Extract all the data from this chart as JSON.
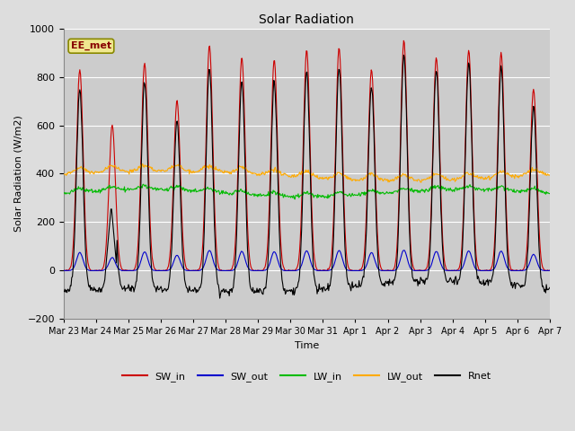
{
  "title": "Solar Radiation",
  "ylabel": "Solar Radiation (W/m2)",
  "xlabel": "Time",
  "ylim": [
    -200,
    1000
  ],
  "yticks": [
    -200,
    0,
    200,
    400,
    600,
    800,
    1000
  ],
  "xtick_labels": [
    "Mar 23",
    "Mar 24",
    "Mar 25",
    "Mar 26",
    "Mar 27",
    "Mar 28",
    "Mar 29",
    "Mar 30",
    "Mar 31",
    "Apr 1",
    "Apr 2",
    "Apr 3",
    "Apr 4",
    "Apr 5",
    "Apr 6",
    "Apr 7"
  ],
  "station_label": "EE_met",
  "colors": {
    "SW_in": "#cc0000",
    "SW_out": "#0000cc",
    "LW_in": "#00bb00",
    "LW_out": "#ffaa00",
    "Rnet": "#000000"
  },
  "fig_bg": "#dddddd",
  "plot_bg": "#cccccc",
  "grid_color": "#ffffff",
  "figsize": [
    6.4,
    4.8
  ],
  "dpi": 100
}
